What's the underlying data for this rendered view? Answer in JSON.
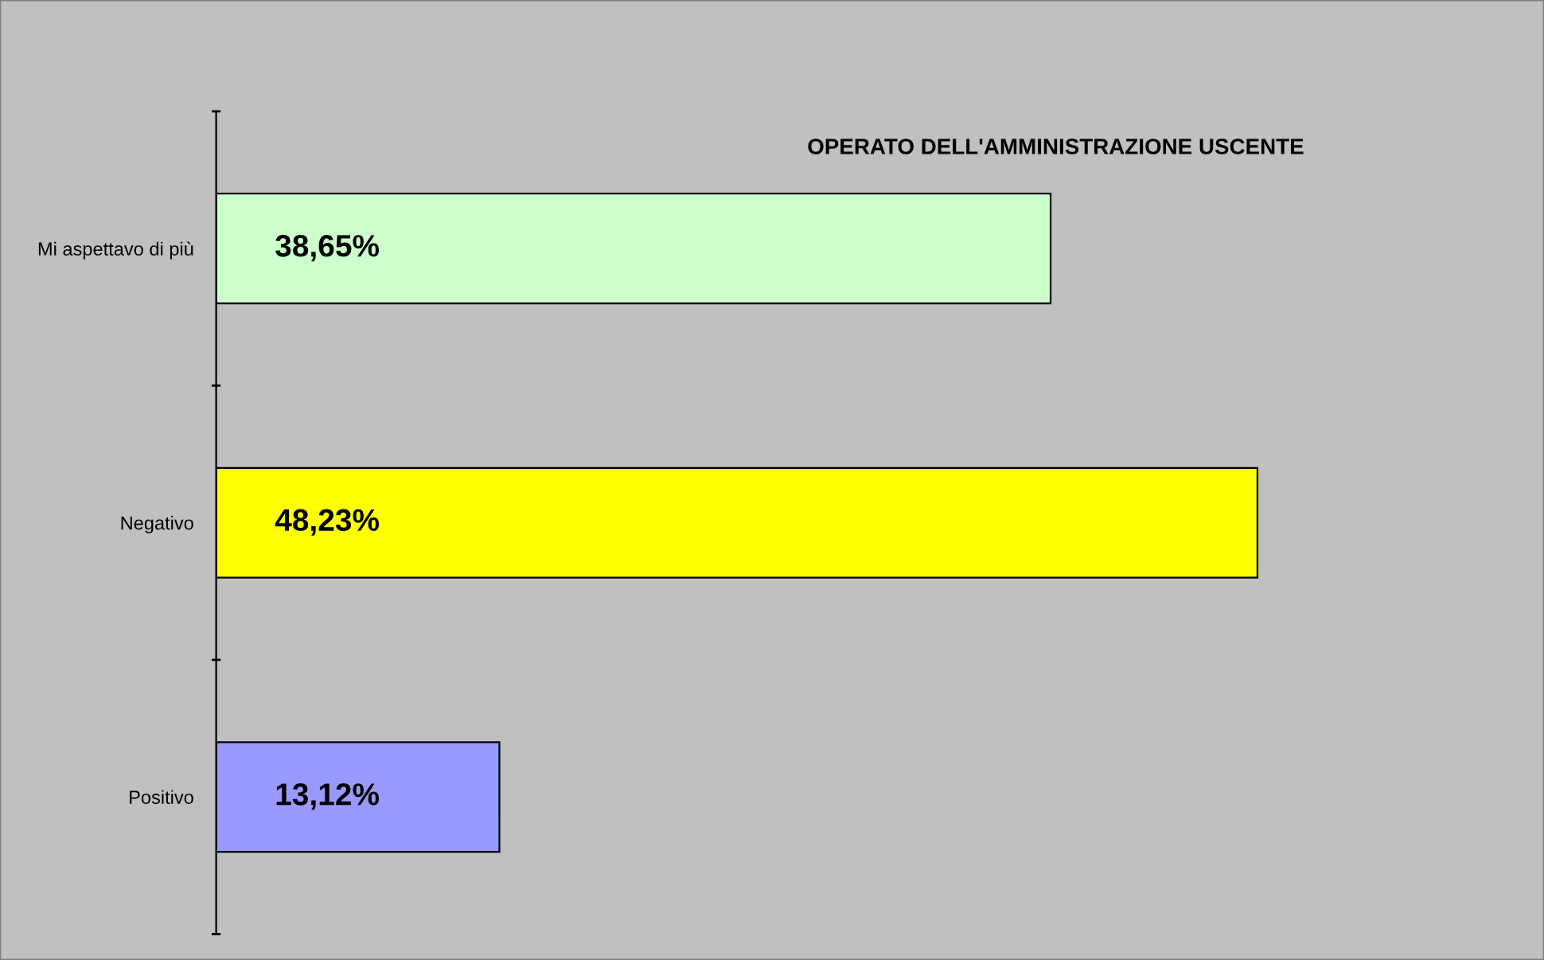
{
  "chart_data": {
    "type": "bar",
    "orientation": "horizontal",
    "title": "OPERATO DELL'AMMINISTRAZIONE USCENTE",
    "categories": [
      "Mi aspettavo di più",
      "Negativo",
      "Positivo"
    ],
    "values": [
      38.65,
      48.23,
      13.12
    ],
    "colors": [
      "#ccffcc",
      "#ffff00",
      "#9999ff"
    ],
    "value_labels": [
      "38,65%",
      "48,23%",
      "13,12%"
    ],
    "tick_labels": "y",
    "grid": false,
    "legend": false
  }
}
